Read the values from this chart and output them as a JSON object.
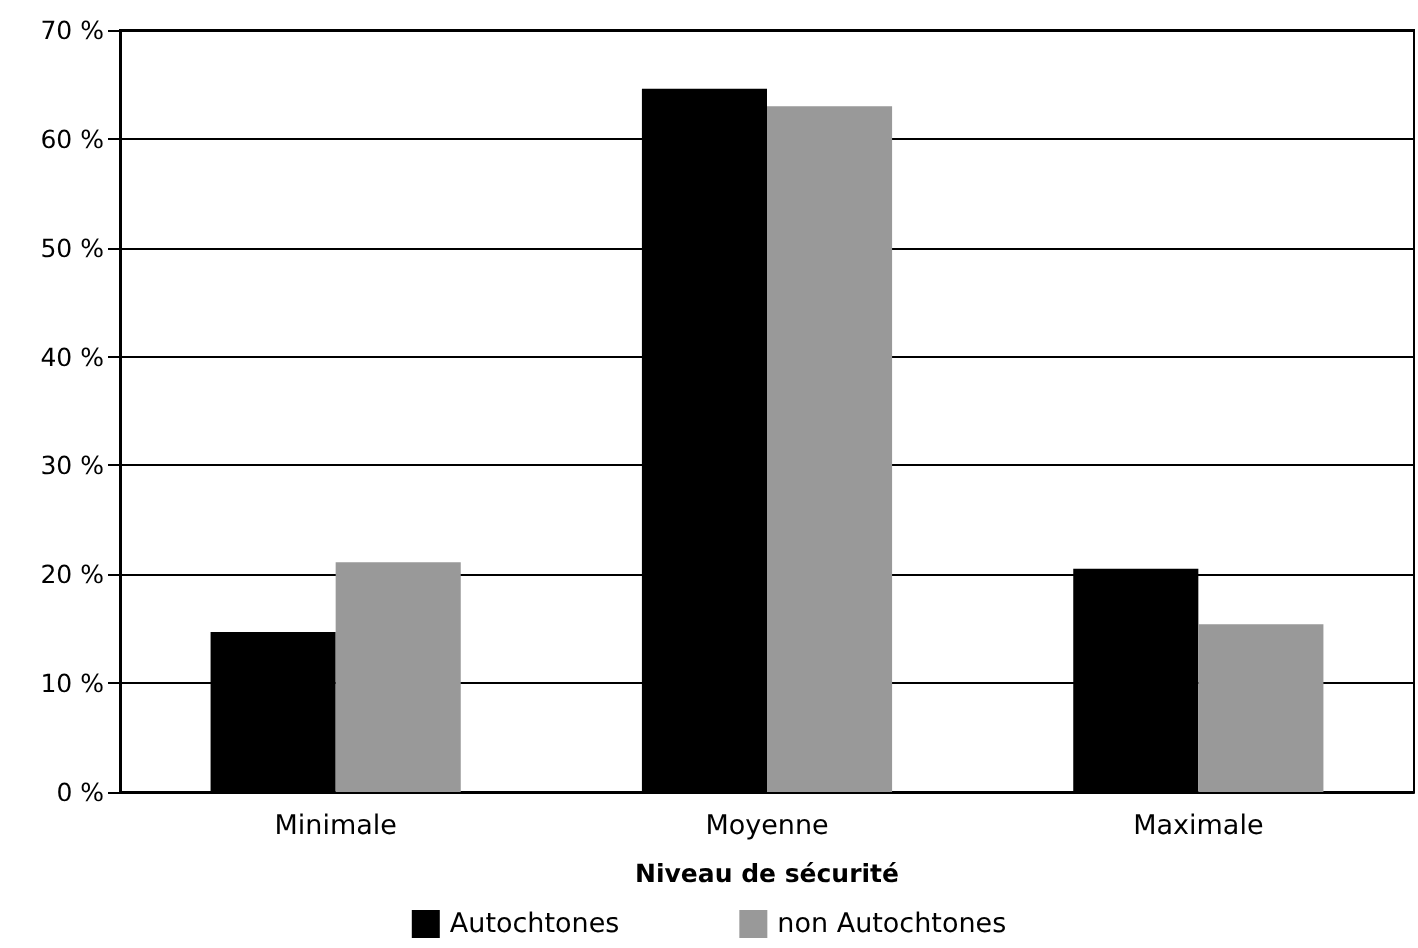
{
  "chart_data": {
    "type": "bar",
    "xlabel": "Niveau de sécurité",
    "categories": [
      "Minimale",
      "Moyenne",
      "Maximale"
    ],
    "series": [
      {
        "name": "Autochtones",
        "color": "#000000",
        "values": [
          14.7,
          64.6,
          20.5
        ]
      },
      {
        "name": "non Autochtones",
        "color": "#999999",
        "values": [
          21.1,
          63.0,
          15.4
        ]
      }
    ],
    "ylim": [
      0,
      70
    ],
    "yticks": [
      {
        "value": 0,
        "label": "0 %"
      },
      {
        "value": 10,
        "label": "10 %"
      },
      {
        "value": 20,
        "label": "20 %"
      },
      {
        "value": 30,
        "label": "30 %"
      },
      {
        "value": 40,
        "label": "40 %"
      },
      {
        "value": 50,
        "label": "50 %"
      },
      {
        "value": 60,
        "label": "60 %"
      },
      {
        "value": 70,
        "label": "70 %"
      }
    ],
    "grid": "y",
    "legend": "bottom"
  }
}
